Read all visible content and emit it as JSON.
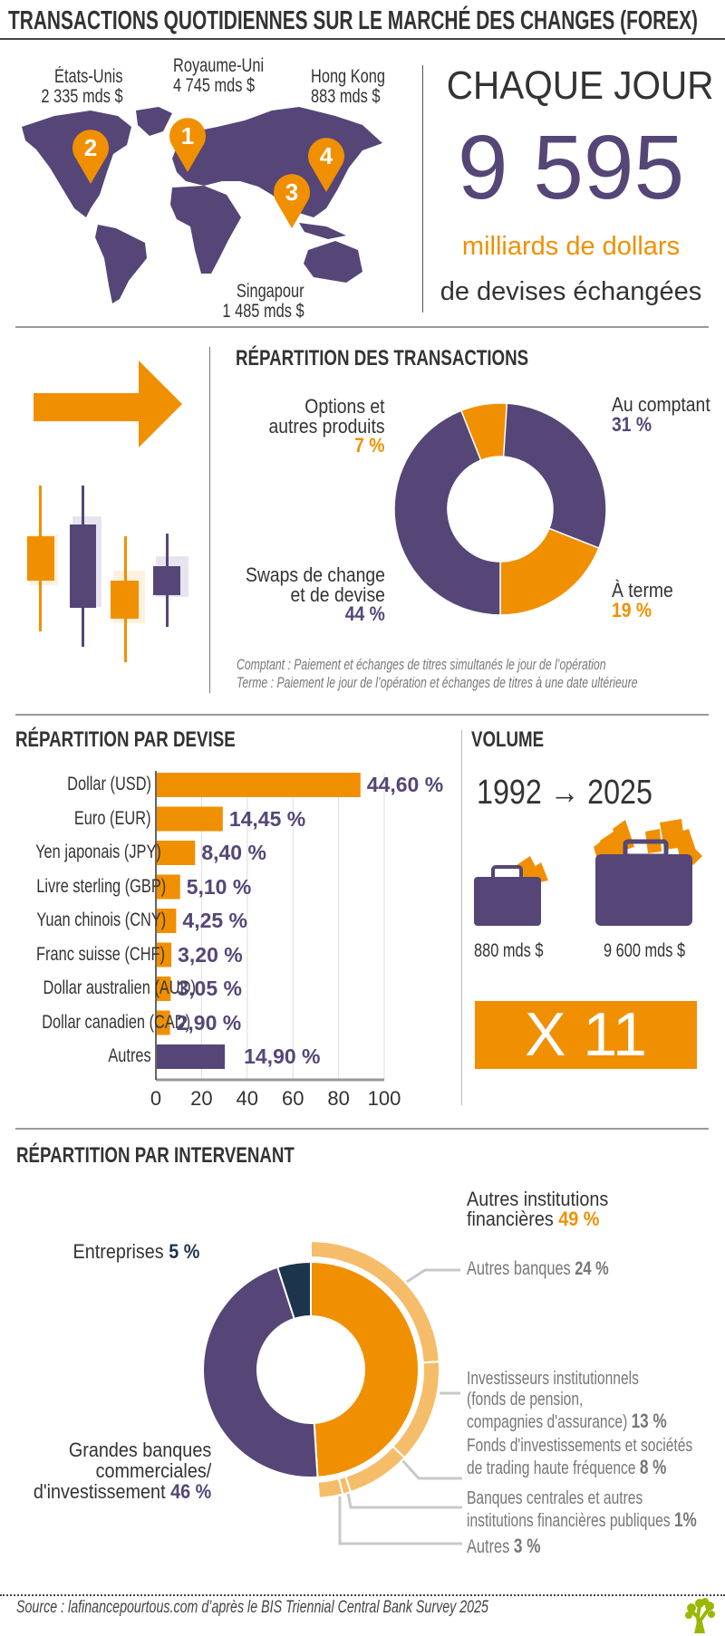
{
  "title": "TRANSACTIONS QUOTIDIENNES SUR LE MARCHÉ DES CHANGES (FOREX)",
  "colors": {
    "purple": "#554677",
    "orange": "#f09000",
    "light_orange": "#f5bd6a",
    "navy": "#1c344c",
    "text": "#333333",
    "gray": "#777777"
  },
  "map": {
    "locations": [
      {
        "rank": "1",
        "name": "Royaume-Uni",
        "value": "4 745 mds $"
      },
      {
        "rank": "2",
        "name": "États-Unis",
        "value": "2 335 mds $"
      },
      {
        "rank": "3",
        "name": "Singapour",
        "value": "1 485 mds $"
      },
      {
        "rank": "4",
        "name": "Hong Kong",
        "value": "883 mds $"
      }
    ]
  },
  "daily": {
    "line1": "CHAQUE JOUR",
    "amount": "9 595",
    "unit": "milliards de dollars",
    "line4": "de devises échangées"
  },
  "transactions": {
    "heading": "RÉPARTITION DES TRANSACTIONS",
    "icons": [
      "arrow-right-icon",
      "candlestick-chart-icon"
    ],
    "chart_data": {
      "type": "pie",
      "slices": [
        {
          "label": "Au comptant",
          "value": 31,
          "display": "31 %",
          "color": "#554677"
        },
        {
          "label": "À terme",
          "value": 19,
          "display": "19 %",
          "color": "#f09000"
        },
        {
          "label": "Swaps de change et de devise",
          "value": 44,
          "display": "44 %",
          "color": "#554677"
        },
        {
          "label": "Options et autres produits",
          "value": 7,
          "display": "7 %",
          "color": "#f09000"
        }
      ]
    },
    "labels": {
      "options_l1": "Options et",
      "options_l2": "autres produits",
      "comptant": "Au comptant",
      "terme": "À terme",
      "swaps_l1": "Swaps de change",
      "swaps_l2": "et de devise"
    },
    "notes": [
      "Comptant : Paiement et échanges de titres simultanés le jour de l’opération",
      "Terme : Paiement le jour de l’opération et échanges de titres à une date ultérieure"
    ]
  },
  "currency": {
    "heading": "RÉPARTITION PAR DEVISE",
    "chart_data": {
      "type": "bar",
      "orientation": "horizontal",
      "categories": [
        "Dollar (USD)",
        "Euro (EUR)",
        "Yen japonais (JPY)",
        "Livre sterling (GBP)",
        "Yuan chinois (CNY)",
        "Franc suisse (CHF)",
        "Dollar australien (AUD)",
        "Dollar canadien (CAD)",
        "Autres"
      ],
      "values": [
        44.6,
        14.45,
        8.4,
        5.1,
        4.25,
        3.2,
        3.05,
        2.9,
        14.9
      ],
      "data_labels": [
        "44,60 %",
        "14,45 %",
        "8,40 %",
        "5,10 %",
        "4,25 %",
        "3,20 %",
        "3,05 %",
        "2,90 %",
        "14,90 %"
      ],
      "colors": [
        "#f09000",
        "#f09000",
        "#f09000",
        "#f09000",
        "#f09000",
        "#f09000",
        "#f09000",
        "#f09000",
        "#554677"
      ],
      "xticks": [
        "0",
        "20",
        "40",
        "60",
        "80",
        "100"
      ],
      "xlim": [
        0,
        100
      ],
      "grid": true
    }
  },
  "volume": {
    "heading": "VOLUME",
    "years": "1992 → 2025",
    "from": "880 mds $",
    "to": "9 600 mds $",
    "multiplier": "X 11",
    "icons": [
      "briefcase-small-icon",
      "briefcase-large-icon"
    ]
  },
  "participants": {
    "heading": "RÉPARTITION PAR INTERVENANT",
    "chart_data": {
      "type": "pie",
      "inner": [
        {
          "label": "Autres institutions financières",
          "value": 49,
          "display": "49 %",
          "color": "#f09000"
        },
        {
          "label": "Grandes banques commerciales/ d'investissement",
          "value": 46,
          "display": "46 %",
          "color": "#554677"
        },
        {
          "label": "Entreprises",
          "value": 5,
          "display": "5 %",
          "color": "#1c344c"
        }
      ],
      "outer": [
        {
          "label": "Autres banques",
          "value": 24,
          "display": "24 %"
        },
        {
          "label": "Investisseurs institutionnels (fonds de pension, compagnies d'assurance)",
          "value": 13,
          "display": "13 %"
        },
        {
          "label": "Fonds d'investissements et sociétés de trading haute fréquence",
          "value": 8,
          "display": "8 %"
        },
        {
          "label": "Banques centrales et autres institutions financières publiques",
          "value": 1,
          "display": "1%"
        },
        {
          "label": "Autres",
          "value": 3,
          "display": "3 %"
        }
      ]
    },
    "labels": {
      "autres_inst_l1": "Autres institutions",
      "autres_inst_l2": "financières",
      "entreprises": "Entreprises",
      "grandes_l1": "Grandes banques",
      "grandes_l2": "commerciales/",
      "grandes_l3": "d'investissement",
      "autres_banques": "Autres banques",
      "invest_l1": "Investisseurs institutionnels",
      "invest_l2": "(fonds de pension,",
      "invest_l3": "compagnies d'assurance)",
      "fonds_l1": "Fonds d'investissements et sociétés",
      "fonds_l2": "de trading haute fréquence",
      "bc_l1": "Banques centrales et autres",
      "bc_l2": "institutions financières publiques",
      "autres": "Autres"
    }
  },
  "source": "Source : lafinancepourtous.com d’après le BIS Triennial Central Bank Survey 2025",
  "logo": "tree-logo-icon"
}
